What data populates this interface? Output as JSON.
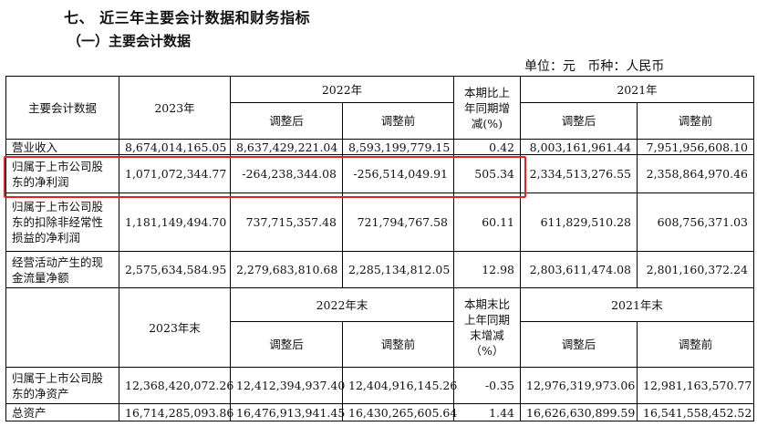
{
  "heading": "七、 近三年主要会计数据和财务指标",
  "subheading": "（一）主要会计数据",
  "unit_line": {
    "unit": "单位：元",
    "currency": "币种：人民币"
  },
  "table1": {
    "header": {
      "col_item": "主要会计数据",
      "col_2023": "2023年",
      "col_2022": "2022年",
      "col_change": "本期比上年同期增减(%)",
      "col_2021": "2021年",
      "adjusted_after": "调整后",
      "adjusted_before": "调整前"
    },
    "rows": [
      {
        "label": "营业收入",
        "y2023": "8,674,014,165.05",
        "y2022_after": "8,637,429,221.04",
        "y2022_before": "8,593,199,779.15",
        "change": "0.42",
        "y2021_after": "8,003,161,961.44",
        "y2021_before": "7,951,956,608.10"
      },
      {
        "label": "归属于上市公司股东的净利润",
        "y2023": "1,071,072,344.77",
        "y2022_after": "-264,238,344.08",
        "y2022_before": "-256,514,049.91",
        "change": "505.34",
        "y2021_after": "2,334,513,276.55",
        "y2021_before": "2,358,864,970.46"
      },
      {
        "label": "归属于上市公司股东的扣除非经常性损益的净利润",
        "y2023": "1,181,149,494.70",
        "y2022_after": "737,715,357.48",
        "y2022_before": "721,794,767.58",
        "change": "60.11",
        "y2021_after": "611,829,510.28",
        "y2021_before": "608,756,371.03"
      },
      {
        "label": "经营活动产生的现金流量净额",
        "y2023": "2,575,634,584.95",
        "y2022_after": "2,279,683,810.68",
        "y2022_before": "2,285,134,812.05",
        "change": "12.98",
        "y2021_after": "2,803,611,474.08",
        "y2021_before": "2,801,160,372.24"
      }
    ]
  },
  "table2": {
    "header": {
      "col_2023": "2023年末",
      "col_2022": "2022年末",
      "col_change": "本期末比上年同期末增减（%）",
      "col_2021": "2021年末",
      "adjusted_after": "调整后",
      "adjusted_before": "调整前"
    },
    "rows": [
      {
        "label": "归属于上市公司股东的净资产",
        "y2023": "12,368,420,072.26",
        "y2022_after": "12,412,394,937.40",
        "y2022_before": "12,404,916,145.26",
        "change": "-0.35",
        "y2021_after": "12,976,319,973.06",
        "y2021_before": "12,981,163,570.77"
      },
      {
        "label": "总资产",
        "y2023": "16,714,285,093.86",
        "y2022_after": "16,476,913,941.45",
        "y2022_before": "16,430,265,605.64",
        "change": "1.44",
        "y2021_after": "16,626,630,899.59",
        "y2021_before": "16,541,558,452.52"
      }
    ]
  },
  "highlight_color": "#e02424"
}
